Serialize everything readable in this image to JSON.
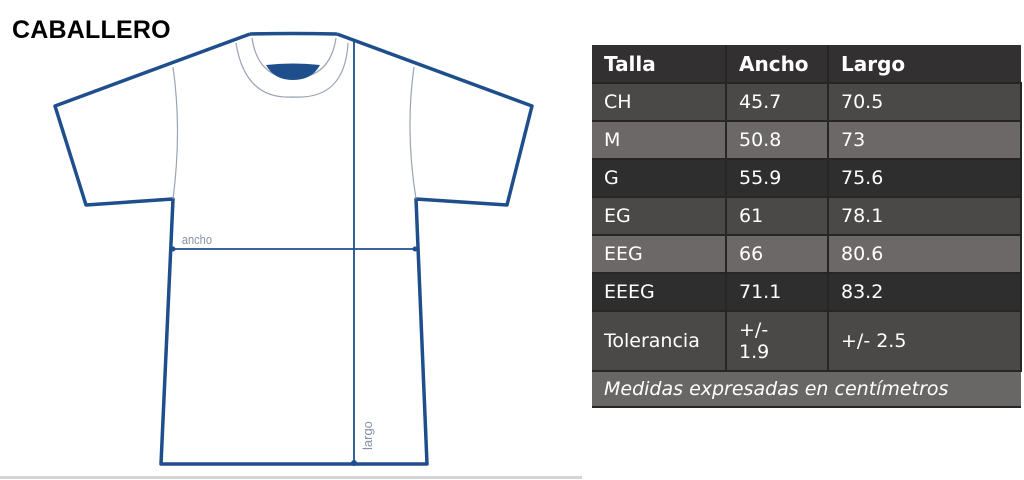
{
  "title": "CABALLERO",
  "diagram": {
    "width_label": "ancho",
    "length_label": "largo",
    "line_color": "#1f4e8c"
  },
  "table": {
    "headers": [
      "Talla",
      "Ancho",
      "Largo"
    ],
    "rows": [
      [
        "CH",
        "45.7",
        "70.5"
      ],
      [
        "M",
        "50.8",
        "73"
      ],
      [
        "G",
        "55.9",
        "75.6"
      ],
      [
        "EG",
        "61",
        "78.1"
      ],
      [
        "EEG",
        "66",
        "80.6"
      ],
      [
        "EEEG",
        "71.1",
        "83.2"
      ]
    ],
    "tolerance": [
      "Tolerancia",
      "+/- 1.9",
      "+/- 2.5"
    ],
    "footer": "Medidas expresadas en centímetros"
  }
}
